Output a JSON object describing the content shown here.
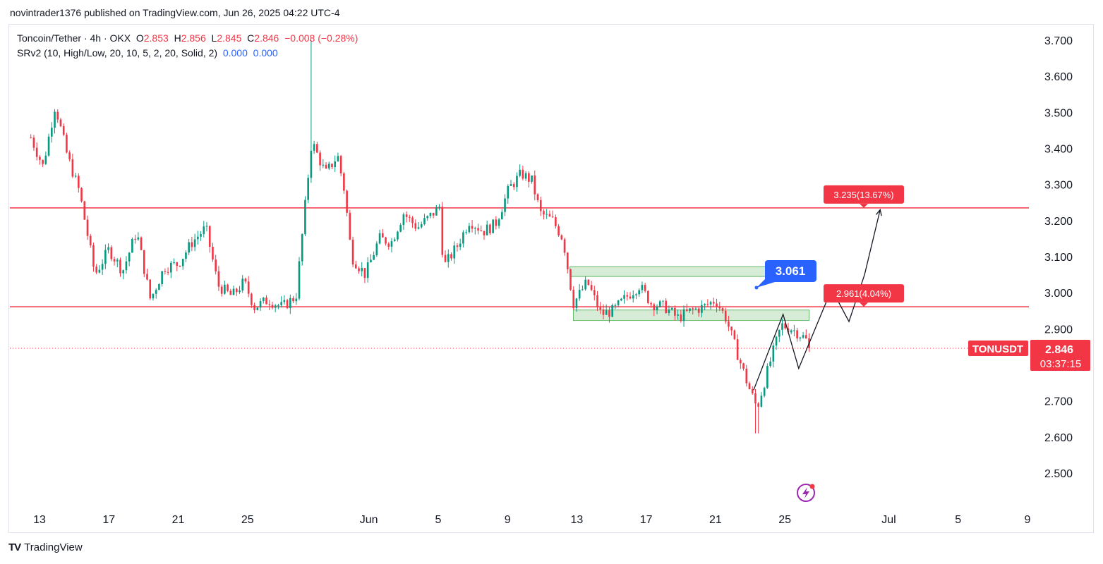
{
  "header": {
    "published_line": "novintrader1376 published on TradingView.com, Jun 26, 2025 04:22 UTC-4"
  },
  "legend": {
    "symbol": "Toncoin/Tether · 4h · OKX",
    "open_label": "O",
    "open": "2.853",
    "high_label": "H",
    "high": "2.856",
    "low_label": "L",
    "low": "2.845",
    "close_label": "C",
    "close": "2.846",
    "change": "−0.008 (−0.28%)",
    "indicator": "SRv2 (10, High/Low, 20, 10, 5, 2, 20, Solid, 2)",
    "indicator_v1": "0.000",
    "indicator_v2": "0.000"
  },
  "footer": {
    "brand": "TradingView",
    "logo_text": "TV"
  },
  "colors": {
    "up": "#089981",
    "down": "#f23645",
    "line": "#f23645",
    "zone_fill": "#c8e6c9",
    "zone_stroke": "#66bb6a",
    "callout": "#2962ff"
  },
  "chart_data": {
    "type": "candlestick",
    "symbol": "TONUSDT",
    "timeframe": "4h",
    "y_ticks": [
      "3.700",
      "3.600",
      "3.500",
      "3.400",
      "3.300",
      "3.200",
      "3.100",
      "3.000",
      "2.900",
      "2.700",
      "2.600",
      "2.500"
    ],
    "ylim": [
      2.43,
      3.77
    ],
    "x_ticks": [
      {
        "label": "13",
        "day": 13
      },
      {
        "label": "17",
        "day": 17
      },
      {
        "label": "21",
        "day": 21
      },
      {
        "label": "25",
        "day": 25
      },
      {
        "label": "Jun",
        "day": 32
      },
      {
        "label": "5",
        "day": 36
      },
      {
        "label": "9",
        "day": 40
      },
      {
        "label": "13",
        "day": 44
      },
      {
        "label": "17",
        "day": 48
      },
      {
        "label": "21",
        "day": 52
      },
      {
        "label": "25",
        "day": 56
      },
      {
        "label": "Jul",
        "day": 62
      },
      {
        "label": "5",
        "day": 66
      },
      {
        "label": "9",
        "day": 70
      }
    ],
    "price_path": [
      [
        12.5,
        3.43
      ],
      [
        13.2,
        3.35
      ],
      [
        13.9,
        3.52
      ],
      [
        14.6,
        3.38
      ],
      [
        15.3,
        3.28
      ],
      [
        16.2,
        3.05
      ],
      [
        17.0,
        3.12
      ],
      [
        17.8,
        3.06
      ],
      [
        18.6,
        3.17
      ],
      [
        19.4,
        2.98
      ],
      [
        20.2,
        3.07
      ],
      [
        21.0,
        3.08
      ],
      [
        21.8,
        3.14
      ],
      [
        22.6,
        3.18
      ],
      [
        23.3,
        3.02
      ],
      [
        24.1,
        2.99
      ],
      [
        24.8,
        3.03
      ],
      [
        25.4,
        2.96
      ],
      [
        26.2,
        2.98
      ],
      [
        27.0,
        2.96
      ],
      [
        27.8,
        2.99
      ],
      [
        28.7,
        3.42
      ],
      [
        29.5,
        3.33
      ],
      [
        30.2,
        3.38
      ],
      [
        30.6,
        3.28
      ],
      [
        31.0,
        3.1
      ],
      [
        31.8,
        3.05
      ],
      [
        32.6,
        3.15
      ],
      [
        33.3,
        3.14
      ],
      [
        34.0,
        3.22
      ],
      [
        34.8,
        3.18
      ],
      [
        35.5,
        3.21
      ],
      [
        36.1,
        3.24
      ],
      [
        36.3,
        3.07
      ],
      [
        37.1,
        3.13
      ],
      [
        37.8,
        3.2
      ],
      [
        38.6,
        3.17
      ],
      [
        39.3,
        3.19
      ],
      [
        40.1,
        3.29
      ],
      [
        40.8,
        3.33
      ],
      [
        41.4,
        3.31
      ],
      [
        41.9,
        3.22
      ],
      [
        42.6,
        3.2
      ],
      [
        43.2,
        3.15
      ],
      [
        43.8,
        2.97
      ],
      [
        44.6,
        3.03
      ],
      [
        45.4,
        2.94
      ],
      [
        46.1,
        2.95
      ],
      [
        46.9,
        2.99
      ],
      [
        47.6,
        3.02
      ],
      [
        48.3,
        2.97
      ],
      [
        49.1,
        2.96
      ],
      [
        49.8,
        2.93
      ],
      [
        50.6,
        2.95
      ],
      [
        51.3,
        2.96
      ],
      [
        52.0,
        2.98
      ],
      [
        52.6,
        2.93
      ],
      [
        53.2,
        2.84
      ],
      [
        53.9,
        2.74
      ],
      [
        54.4,
        2.68
      ],
      [
        55.1,
        2.8
      ],
      [
        55.8,
        2.91
      ],
      [
        56.4,
        2.9
      ],
      [
        57.0,
        2.88
      ],
      [
        57.4,
        2.86
      ]
    ],
    "candle_count": 262,
    "current_price": "2.846",
    "countdown": "03:37:15",
    "wick_extremes": {
      "high": 3.7,
      "low": 2.61,
      "high_day": 28.7,
      "low_day": 54.4
    },
    "horizontal_lines": [
      {
        "price": 3.235
      },
      {
        "price": 2.961
      }
    ],
    "zones": [
      {
        "day_start": 43.6,
        "day_end": 56.3,
        "low": 3.045,
        "high": 3.072
      },
      {
        "day_start": 43.8,
        "day_end": 57.4,
        "low": 2.923,
        "high": 2.952
      }
    ],
    "projection_path": [
      [
        54.2,
        2.73
      ],
      [
        55.0,
        2.83
      ],
      [
        55.9,
        2.94
      ],
      [
        56.8,
        2.79
      ],
      [
        58.7,
        3.01
      ],
      [
        59.7,
        2.92
      ],
      [
        60.6,
        3.05
      ],
      [
        61.5,
        3.23
      ]
    ],
    "targets": [
      {
        "label": "3.235(13.67%)",
        "price": 3.235
      },
      {
        "label": "2.961(4.04%)",
        "price": 2.961
      }
    ],
    "callout": {
      "label": "3.061",
      "price": 3.061
    }
  }
}
